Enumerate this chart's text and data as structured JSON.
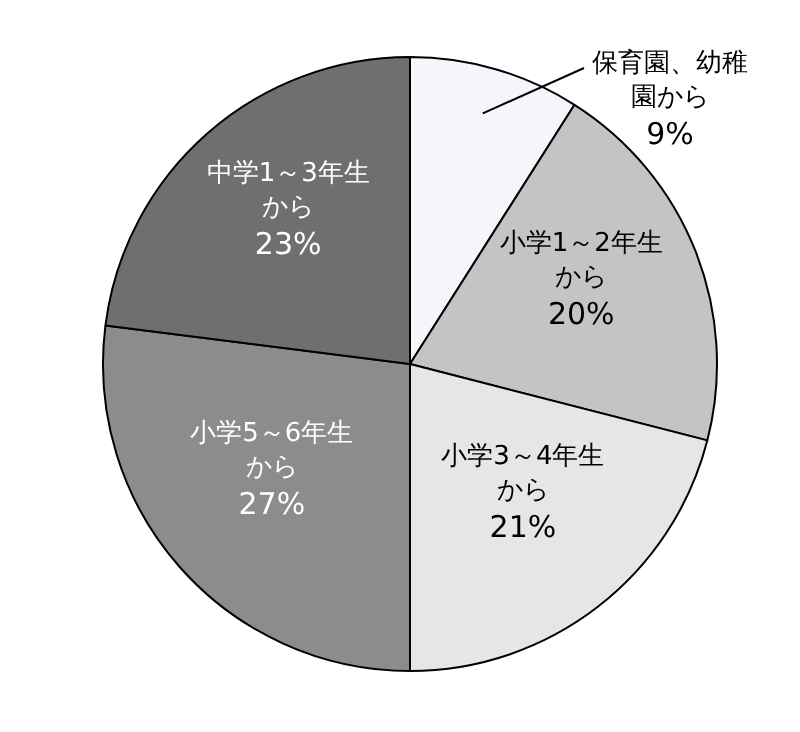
{
  "chart_data": {
    "type": "pie",
    "categories": [
      "保育園、幼稚園から",
      "小学1～2年生から",
      "小学3～4年生から",
      "小学5～6年生から",
      "中学1～3年生から"
    ],
    "values": [
      9,
      20,
      21,
      27,
      23
    ],
    "value_labels": [
      "9%",
      "20%",
      "21%",
      "27%",
      "23%"
    ],
    "colors": [
      "#f4f6fb",
      "#c4c4c4",
      "#e6e6e6",
      "#8c8c8c",
      "#6f6f6f"
    ],
    "legend": false
  }
}
